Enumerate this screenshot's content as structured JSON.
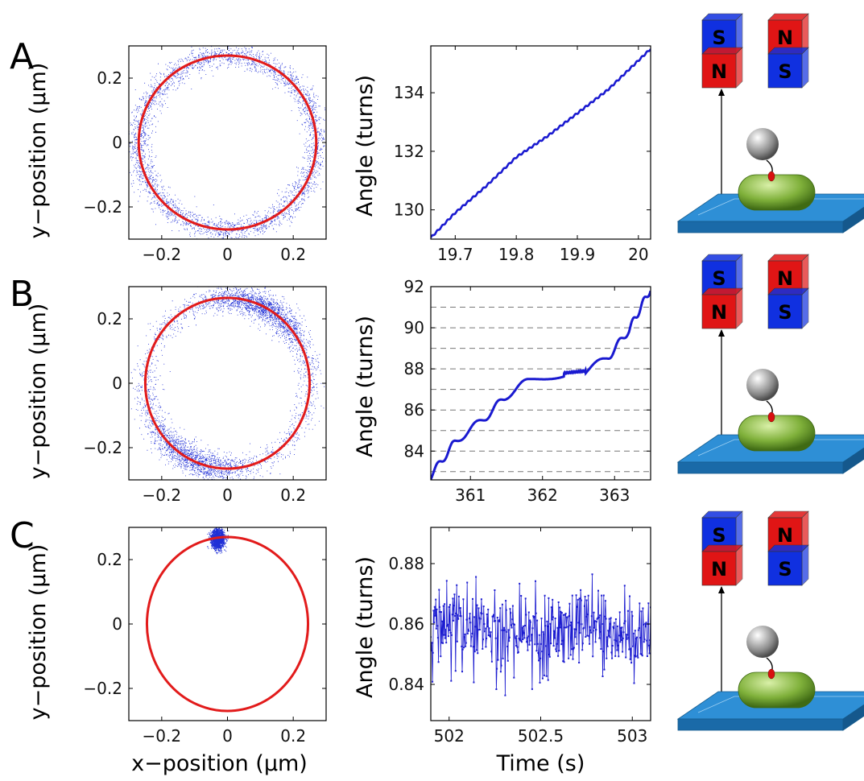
{
  "panels": [
    {
      "letter": "A",
      "magnet_labels": {
        "left_top": "S",
        "left_bottom": "N",
        "right_top": "N",
        "right_bottom": "S"
      },
      "left_plot": {
        "ylabel": "y−position (μm)",
        "xlabel": "",
        "x_ticks": [
          "−0.2",
          "0",
          "0.2"
        ],
        "y_ticks": [
          "0.2",
          "0",
          "−0.2"
        ]
      },
      "right_plot": {
        "ylabel": "Angle (turns)",
        "xlabel": "",
        "x_ticks": [
          "19.7",
          "19.8",
          "19.9",
          "20"
        ],
        "y_ticks": [
          "134",
          "132",
          "130"
        ]
      }
    },
    {
      "letter": "B",
      "magnet_labels": {
        "left_top": "S",
        "left_bottom": "N",
        "right_top": "N",
        "right_bottom": "S"
      },
      "left_plot": {
        "ylabel": "y−position (μm)",
        "xlabel": "",
        "x_ticks": [
          "−0.2",
          "0",
          "0.2"
        ],
        "y_ticks": [
          "0.2",
          "0",
          "−0.2"
        ]
      },
      "right_plot": {
        "ylabel": "Angle (turns)",
        "xlabel": "",
        "x_ticks": [
          "361",
          "362",
          "363"
        ],
        "y_ticks": [
          "92",
          "90",
          "88",
          "86",
          "84"
        ]
      }
    },
    {
      "letter": "C",
      "magnet_labels": {
        "left_top": "S",
        "left_bottom": "N",
        "right_top": "N",
        "right_bottom": "S"
      },
      "left_plot": {
        "ylabel": "y−position (μm)",
        "xlabel": "x−position (μm)",
        "x_ticks": [
          "−0.2",
          "0",
          "0.2"
        ],
        "y_ticks": [
          "0.2",
          "0",
          "−0.2"
        ]
      },
      "right_plot": {
        "ylabel": "Angle (turns)",
        "xlabel": "Time (s)",
        "x_ticks": [
          "502",
          "502.5",
          "503"
        ],
        "y_ticks": [
          "0.88",
          "0.86",
          "0.84"
        ]
      }
    }
  ],
  "colors": {
    "scatter": "#1f2fd6",
    "fit_circle": "#e21b1b",
    "trace": "#1a1ad0",
    "magnet_red": "#e01515",
    "magnet_blue": "#1030e0",
    "bead": "#9a9a9a",
    "cell": "#7fa83a",
    "surface": "#1f7fc4"
  },
  "chart_data": [
    {
      "type": "scatter",
      "panel": "A",
      "description_key": "xy-trace",
      "x_range": [
        -0.3,
        0.3
      ],
      "y_range": [
        -0.3,
        0.3
      ],
      "fit_circle": {
        "cx": 0.0,
        "cy": 0.0,
        "r": 0.27
      },
      "scatter_ring": {
        "cx": 0.0,
        "cy": 0.0,
        "r": 0.27,
        "spread": 0.018,
        "uniform": true
      },
      "grid": false
    },
    {
      "type": "line",
      "panel": "A",
      "x_range": [
        19.66,
        20.02
      ],
      "y_range": [
        129.0,
        135.6
      ],
      "x": [
        19.66,
        19.7,
        19.75,
        19.8,
        19.85,
        19.9,
        19.95,
        20.0,
        20.02
      ],
      "y": [
        129.05,
        129.9,
        130.8,
        131.8,
        132.5,
        133.3,
        134.1,
        135.1,
        135.5
      ],
      "grid": false
    },
    {
      "type": "scatter",
      "panel": "B",
      "x_range": [
        -0.3,
        0.3
      ],
      "y_range": [
        -0.3,
        0.3
      ],
      "fit_circle": {
        "cx": 0.0,
        "cy": 0.0,
        "r": 0.25,
        "ry": 0.265
      },
      "scatter_ring": {
        "cx": 0.0,
        "cy": 0.0,
        "r": 0.25,
        "ry": 0.265,
        "spread": 0.02,
        "uniform": false
      },
      "grid": false
    },
    {
      "type": "line",
      "panel": "B",
      "x_range": [
        360.45,
        363.5
      ],
      "y_range": [
        82.6,
        92.0
      ],
      "x": [
        360.45,
        360.8,
        361.2,
        361.5,
        361.8,
        362.3,
        362.6,
        362.9,
        363.2,
        363.5
      ],
      "y": [
        82.8,
        84.5,
        85.6,
        86.7,
        87.4,
        87.8,
        87.9,
        88.5,
        89.9,
        91.9
      ],
      "hlines": [
        83,
        84,
        85,
        86,
        87,
        88,
        89,
        90,
        91
      ],
      "grid": false
    },
    {
      "type": "scatter",
      "panel": "C",
      "x_range": [
        -0.3,
        0.3
      ],
      "y_range": [
        -0.3,
        0.3
      ],
      "fit_circle": {
        "cx": 0.0,
        "cy": 0.0,
        "r": 0.245,
        "ry": 0.27
      },
      "cluster": {
        "cx": -0.03,
        "cy": 0.265,
        "rx": 0.02,
        "ry": 0.03
      },
      "grid": false
    },
    {
      "type": "line",
      "panel": "C",
      "x_range": [
        501.9,
        503.1
      ],
      "y_range": [
        0.828,
        0.892
      ],
      "mean": 0.858,
      "noise": 0.007,
      "n_points": 400,
      "grid": false
    }
  ]
}
